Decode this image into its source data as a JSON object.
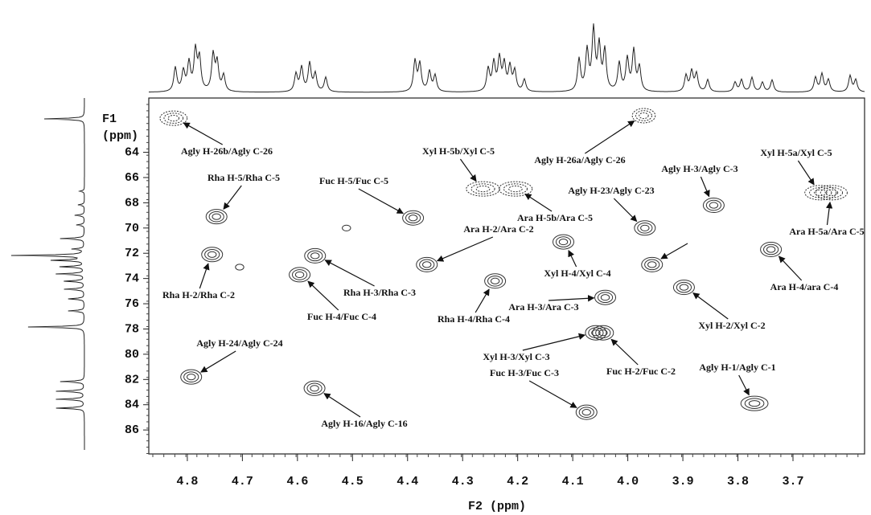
{
  "chart_data": {
    "type": "scatter",
    "x_label": "F2 (ppm)",
    "y_label": [
      "F1",
      "(ppm)"
    ],
    "xlim": [
      4.87,
      3.57
    ],
    "ylim": [
      59.7,
      87.9
    ],
    "xticks": [
      4.8,
      4.7,
      4.6,
      4.5,
      4.4,
      4.3,
      4.2,
      4.1,
      {
        "value": 4,
        "label": "4.0"
      },
      3.9,
      3.8,
      3.7
    ],
    "yticks": [
      64,
      66,
      68,
      70,
      72,
      74,
      76,
      78,
      80,
      82,
      84,
      86
    ],
    "color": "#333333",
    "points": [
      {
        "x": 4.825,
        "y": 61.3,
        "label": "Agly H-26b/Agly C-26"
      },
      {
        "x": 3.971,
        "y": 61.1,
        "label": "Agly H-26a/Agly C-26"
      },
      {
        "x": 4.747,
        "y": 69.1,
        "label": "Rha H-5/Rha C-5"
      },
      {
        "x": 4.755,
        "y": 72.1,
        "label": "Rha H-2/Rha C-2"
      },
      {
        "x": 4.705,
        "y": 73.1,
        "label": null
      },
      {
        "x": 4.596,
        "y": 73.7,
        "label": "Fuc H-4/Fuc C-4"
      },
      {
        "x": 4.568,
        "y": 72.2,
        "label": "Rha H-3/Rha C-3"
      },
      {
        "x": 4.511,
        "y": 70.0,
        "label": null
      },
      {
        "x": 4.39,
        "y": 69.2,
        "label": "Fuc H-5/Fuc C-5"
      },
      {
        "x": 4.263,
        "y": 66.9,
        "label": "Xyl H-5b/Xyl C-5"
      },
      {
        "x": 4.204,
        "y": 66.9,
        "label": "Ara H-5b/Ara C-5"
      },
      {
        "x": 4.365,
        "y": 72.9,
        "label": "Ara H-2/Ara C-2"
      },
      {
        "x": 4.241,
        "y": 74.2,
        "label": "Rha H-4/Rha C-4"
      },
      {
        "x": 4.117,
        "y": 71.1,
        "label": "Xyl H-4/Xyl C-4"
      },
      {
        "x": 4.041,
        "y": 75.5,
        "label": "Ara H-3/Ara C-3"
      },
      {
        "x": 3.969,
        "y": 70.0,
        "label": "Agly H-23/Agly C-23"
      },
      {
        "x": 3.844,
        "y": 68.2,
        "label": "Agly H-3/Agly C-3"
      },
      {
        "x": 3.956,
        "y": 72.9,
        "label": null
      },
      {
        "x": 3.898,
        "y": 74.7,
        "label": "Xyl H-2/Xyl C-2"
      },
      {
        "x": 3.65,
        "y": 67.2,
        "label": "Xyl H-5a/Xyl C-5"
      },
      {
        "x": 3.63,
        "y": 67.2,
        "label": "Ara H-5a/Ara C-5"
      },
      {
        "x": 3.74,
        "y": 71.7,
        "label": "Ara H-4/ara C-4"
      },
      {
        "x": 4.793,
        "y": 81.8,
        "label": "Agly H-24/Agly C-24"
      },
      {
        "x": 4.569,
        "y": 82.7,
        "label": "Agly H-16/Agly C-16"
      },
      {
        "x": 4.058,
        "y": 78.3,
        "label": "Xyl H-3/Xyl C-3"
      },
      {
        "x": 4.045,
        "y": 78.3,
        "label": "Fuc H-2/Fuc C-2"
      },
      {
        "x": 4.075,
        "y": 84.6,
        "label": "Fuc H-3/Fuc C-3"
      },
      {
        "x": 3.77,
        "y": 83.9,
        "label": "Agly H-1/Agly C-1"
      }
    ]
  }
}
